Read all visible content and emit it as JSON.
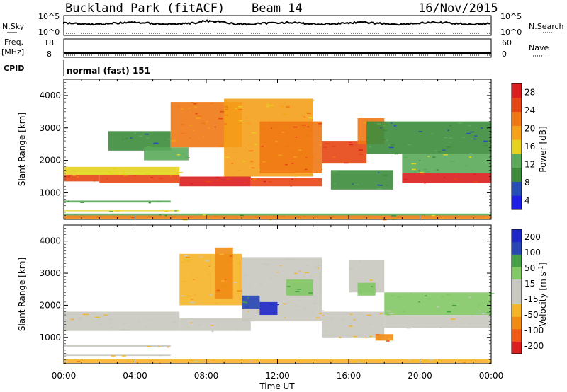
{
  "header": {
    "station": "Buckland Park (fitACF)",
    "beam": "Beam 14",
    "date": "16/Nov/2015"
  },
  "side_labels": {
    "nsky": "N.Sky",
    "freq": "Freq.",
    "freq_unit": "[MHz]",
    "cpid": "CPID",
    "nsearch": "N.Search",
    "nave": "Nave"
  },
  "small_panels": {
    "nsky_ticks": [
      "10^5",
      "10^0"
    ],
    "nsearch_ticks": [
      "10^5",
      "10^0"
    ],
    "freq_ticks": [
      "18",
      "8"
    ],
    "nave_ticks": [
      "60",
      "0"
    ],
    "cpid_text": "normal (fast) 151"
  },
  "x_axis": {
    "label": "Time UT",
    "ticks": [
      "00:00",
      "04:00",
      "08:00",
      "12:00",
      "16:00",
      "20:00",
      "00:00"
    ]
  },
  "colors": {
    "power": [
      "#1e1ee6",
      "#2850b4",
      "#3c8c3c",
      "#5aaa5a",
      "#e6d21e",
      "#f5a019",
      "#f07814",
      "#e64614",
      "#dc1e1e"
    ],
    "velocity": [
      "#dc1e1e",
      "#f05a14",
      "#f08c14",
      "#f5b428",
      "#c8c8c0",
      "#c8c8c0",
      "#82c864",
      "#46a046",
      "#2846b4",
      "#1e28c8"
    ]
  },
  "chart_data": [
    {
      "type": "heatmap",
      "title": "",
      "xlabel": "Time UT",
      "ylabel": "Slant Range [km]",
      "xlim": [
        0,
        24
      ],
      "ylim": [
        180,
        4500
      ],
      "yticks": [
        "1000",
        "2000",
        "3000",
        "4000"
      ],
      "colorbar": {
        "label": "Power [dB]",
        "ticks": [
          "28",
          "24",
          "20",
          "16",
          "12",
          "8",
          "4"
        ],
        "range": [
          0,
          32
        ]
      },
      "bands": [
        {
          "t": [
            0.0,
            24.0
          ],
          "r": [
            200,
            300
          ],
          "level": 6
        },
        {
          "t": [
            0.0,
            24.0
          ],
          "r": [
            300,
            360
          ],
          "level": 3
        },
        {
          "t": [
            0.0,
            6.5
          ],
          "r": [
            430,
            460
          ],
          "level": 4
        },
        {
          "t": [
            0.0,
            6.0
          ],
          "r": [
            700,
            760
          ],
          "level": 3
        },
        {
          "t": [
            0.0,
            2.0
          ],
          "r": [
            1350,
            1550
          ],
          "level": 7
        },
        {
          "t": [
            2.0,
            6.5
          ],
          "r": [
            1300,
            1550
          ],
          "level": 7
        },
        {
          "t": [
            0.0,
            6.5
          ],
          "r": [
            1550,
            1800
          ],
          "level": 4
        },
        {
          "t": [
            6.5,
            10.5
          ],
          "r": [
            1200,
            1500
          ],
          "level": 8
        },
        {
          "t": [
            10.5,
            14.5
          ],
          "r": [
            1200,
            1450
          ],
          "level": 7
        },
        {
          "t": [
            2.5,
            6.0
          ],
          "r": [
            2300,
            2900
          ],
          "level": 2
        },
        {
          "t": [
            4.5,
            7.0
          ],
          "r": [
            2000,
            2400
          ],
          "level": 3
        },
        {
          "t": [
            6.0,
            10.0
          ],
          "r": [
            2400,
            3800
          ],
          "level": 6
        },
        {
          "t": [
            9.0,
            14.0
          ],
          "r": [
            1500,
            3900
          ],
          "level": 5
        },
        {
          "t": [
            11.0,
            14.5
          ],
          "r": [
            1600,
            3200
          ],
          "level": 6
        },
        {
          "t": [
            14.5,
            17.0
          ],
          "r": [
            1900,
            2600
          ],
          "level": 7
        },
        {
          "t": [
            16.5,
            18.0
          ],
          "r": [
            2500,
            3300
          ],
          "level": 6
        },
        {
          "t": [
            15.0,
            18.5
          ],
          "r": [
            1100,
            1700
          ],
          "level": 2
        },
        {
          "t": [
            19.0,
            24.0
          ],
          "r": [
            1300,
            1600
          ],
          "level": 8
        },
        {
          "t": [
            19.0,
            24.0
          ],
          "r": [
            1600,
            2200
          ],
          "level": 3
        },
        {
          "t": [
            17.0,
            24.0
          ],
          "r": [
            2200,
            3200
          ],
          "level": 2
        },
        {
          "t": [
            0.0,
            24.0
          ],
          "r": [
            180,
            220
          ],
          "level": 5
        }
      ]
    },
    {
      "type": "heatmap",
      "title": "",
      "xlabel": "Time UT",
      "ylabel": "Slant Range [km]",
      "xlim": [
        0,
        24
      ],
      "ylim": [
        180,
        4500
      ],
      "yticks": [
        "1000",
        "2000",
        "3000",
        "4000"
      ],
      "colorbar": {
        "label": "Velocity [m s-1]",
        "ticks": [
          "200",
          "100",
          "50",
          "15",
          "-15",
          "-50",
          "-100",
          "-200"
        ],
        "range": [
          -250,
          250
        ]
      },
      "bands": [
        {
          "t": [
            0.0,
            24.0
          ],
          "r": [
            200,
            320
          ],
          "level": 3
        },
        {
          "t": [
            0.0,
            6.5
          ],
          "r": [
            1200,
            1800
          ],
          "level": 4
        },
        {
          "t": [
            6.5,
            10.5
          ],
          "r": [
            1200,
            1600
          ],
          "level": 4
        },
        {
          "t": [
            6.5,
            10.0
          ],
          "r": [
            2000,
            3600
          ],
          "level": 3
        },
        {
          "t": [
            8.5,
            9.5
          ],
          "r": [
            2200,
            3800
          ],
          "level": 2
        },
        {
          "t": [
            10.0,
            14.5
          ],
          "r": [
            1500,
            3500
          ],
          "level": 4
        },
        {
          "t": [
            10.0,
            11.0
          ],
          "r": [
            1900,
            2300
          ],
          "level": 8
        },
        {
          "t": [
            11.0,
            12.0
          ],
          "r": [
            1700,
            2100
          ],
          "level": 9
        },
        {
          "t": [
            12.5,
            14.0
          ],
          "r": [
            2300,
            2800
          ],
          "level": 6
        },
        {
          "t": [
            14.5,
            18.0
          ],
          "r": [
            1000,
            1800
          ],
          "level": 4
        },
        {
          "t": [
            16.0,
            18.0
          ],
          "r": [
            2400,
            3400
          ],
          "level": 4
        },
        {
          "t": [
            16.5,
            17.5
          ],
          "r": [
            2300,
            2700
          ],
          "level": 6
        },
        {
          "t": [
            18.0,
            24.0
          ],
          "r": [
            1300,
            1700
          ],
          "level": 4
        },
        {
          "t": [
            18.0,
            24.0
          ],
          "r": [
            1700,
            2400
          ],
          "level": 6
        },
        {
          "t": [
            17.5,
            18.5
          ],
          "r": [
            900,
            1100
          ],
          "level": 2
        },
        {
          "t": [
            0.0,
            6.0
          ],
          "r": [
            420,
            460
          ],
          "level": 4
        },
        {
          "t": [
            0.0,
            6.0
          ],
          "r": [
            700,
            760
          ],
          "level": 4
        }
      ]
    }
  ]
}
